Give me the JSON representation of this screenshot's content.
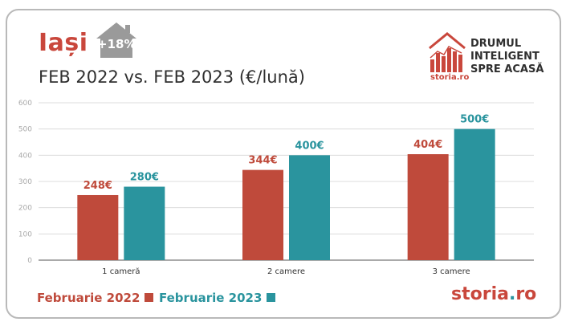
{
  "header": {
    "city": "Iași",
    "change_badge": "+18%",
    "subtitle": "FEB 2022 vs. FEB 2023 (€/lună)"
  },
  "logo": {
    "lines": [
      "DRUMUL",
      "INTELIGENT",
      "SPRE ACASĂ"
    ],
    "small_brand": "storia.ro"
  },
  "brand": {
    "name": "storia",
    "dot": ".",
    "tld": "ro"
  },
  "colors": {
    "series_2022": "#bf4a3b",
    "series_2023": "#2a949e"
  },
  "chart_data": {
    "type": "bar",
    "categories": [
      "1 cameră",
      "2 camere",
      "3 camere"
    ],
    "series": [
      {
        "name": "Februarie 2022",
        "values": [
          248,
          344,
          404
        ],
        "labels": [
          "248€",
          "344€",
          "404€"
        ]
      },
      {
        "name": "Februarie 2023",
        "values": [
          280,
          400,
          500
        ],
        "labels": [
          "280€",
          "400€",
          "500€"
        ]
      }
    ],
    "ylim": [
      0,
      600
    ],
    "yticks": [
      "0",
      "100",
      "200",
      "300",
      "400",
      "500",
      "600"
    ],
    "grid": true,
    "legend": "bottom-left"
  }
}
